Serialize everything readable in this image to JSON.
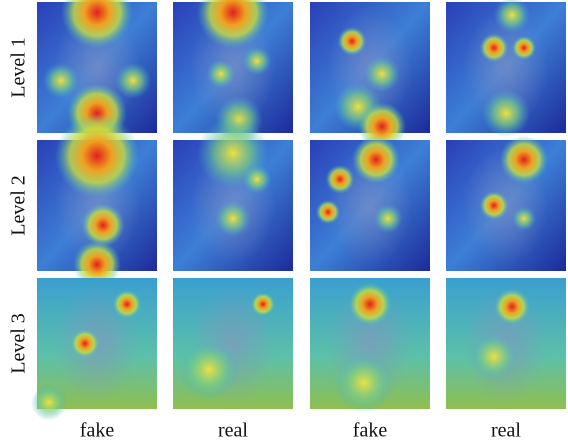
{
  "figure": {
    "row_labels": [
      "Level 1",
      "Level 2",
      "Level 3"
    ],
    "column_labels": [
      "fake",
      "real",
      "fake",
      "real"
    ]
  }
}
